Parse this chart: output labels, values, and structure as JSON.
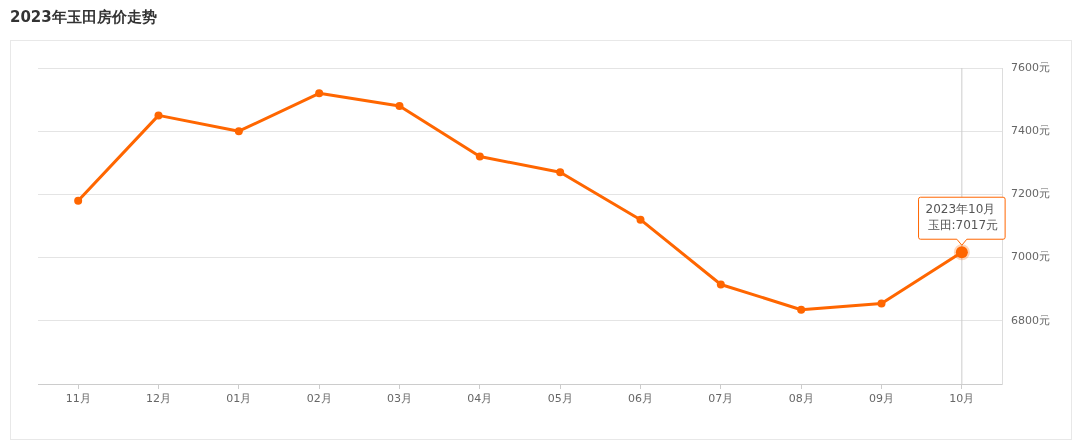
{
  "chart_data": {
    "type": "line",
    "title": "2023年玉田房价走势",
    "categories": [
      "11月",
      "12月",
      "01月",
      "02月",
      "03月",
      "04月",
      "05月",
      "06月",
      "07月",
      "08月",
      "09月",
      "10月"
    ],
    "series": [
      {
        "color": "#ff6600",
        "values": [
          7180,
          7450,
          7400,
          7520,
          7480,
          7320,
          7270,
          7120,
          6915,
          6835,
          6855,
          7017
        ]
      }
    ],
    "ylim": [
      6600,
      7600
    ],
    "yticks": [
      {
        "value": 6800,
        "label": "6800元"
      },
      {
        "value": 7000,
        "label": "7000元"
      },
      {
        "value": 7200,
        "label": "7200元"
      },
      {
        "value": 7400,
        "label": "7400元"
      },
      {
        "value": 7600,
        "label": "7600元"
      }
    ],
    "grid": "y",
    "marker": "circle",
    "line_style": "solid",
    "ref_lines": [
      {
        "axis": "x",
        "value": "10月",
        "color": "#cccccc"
      }
    ],
    "annotations": [
      {
        "text": "2023年10月",
        "x": "10月",
        "y": 7017
      },
      {
        "text": "玉田:7017元",
        "x": "10月",
        "y": 7017
      }
    ]
  }
}
